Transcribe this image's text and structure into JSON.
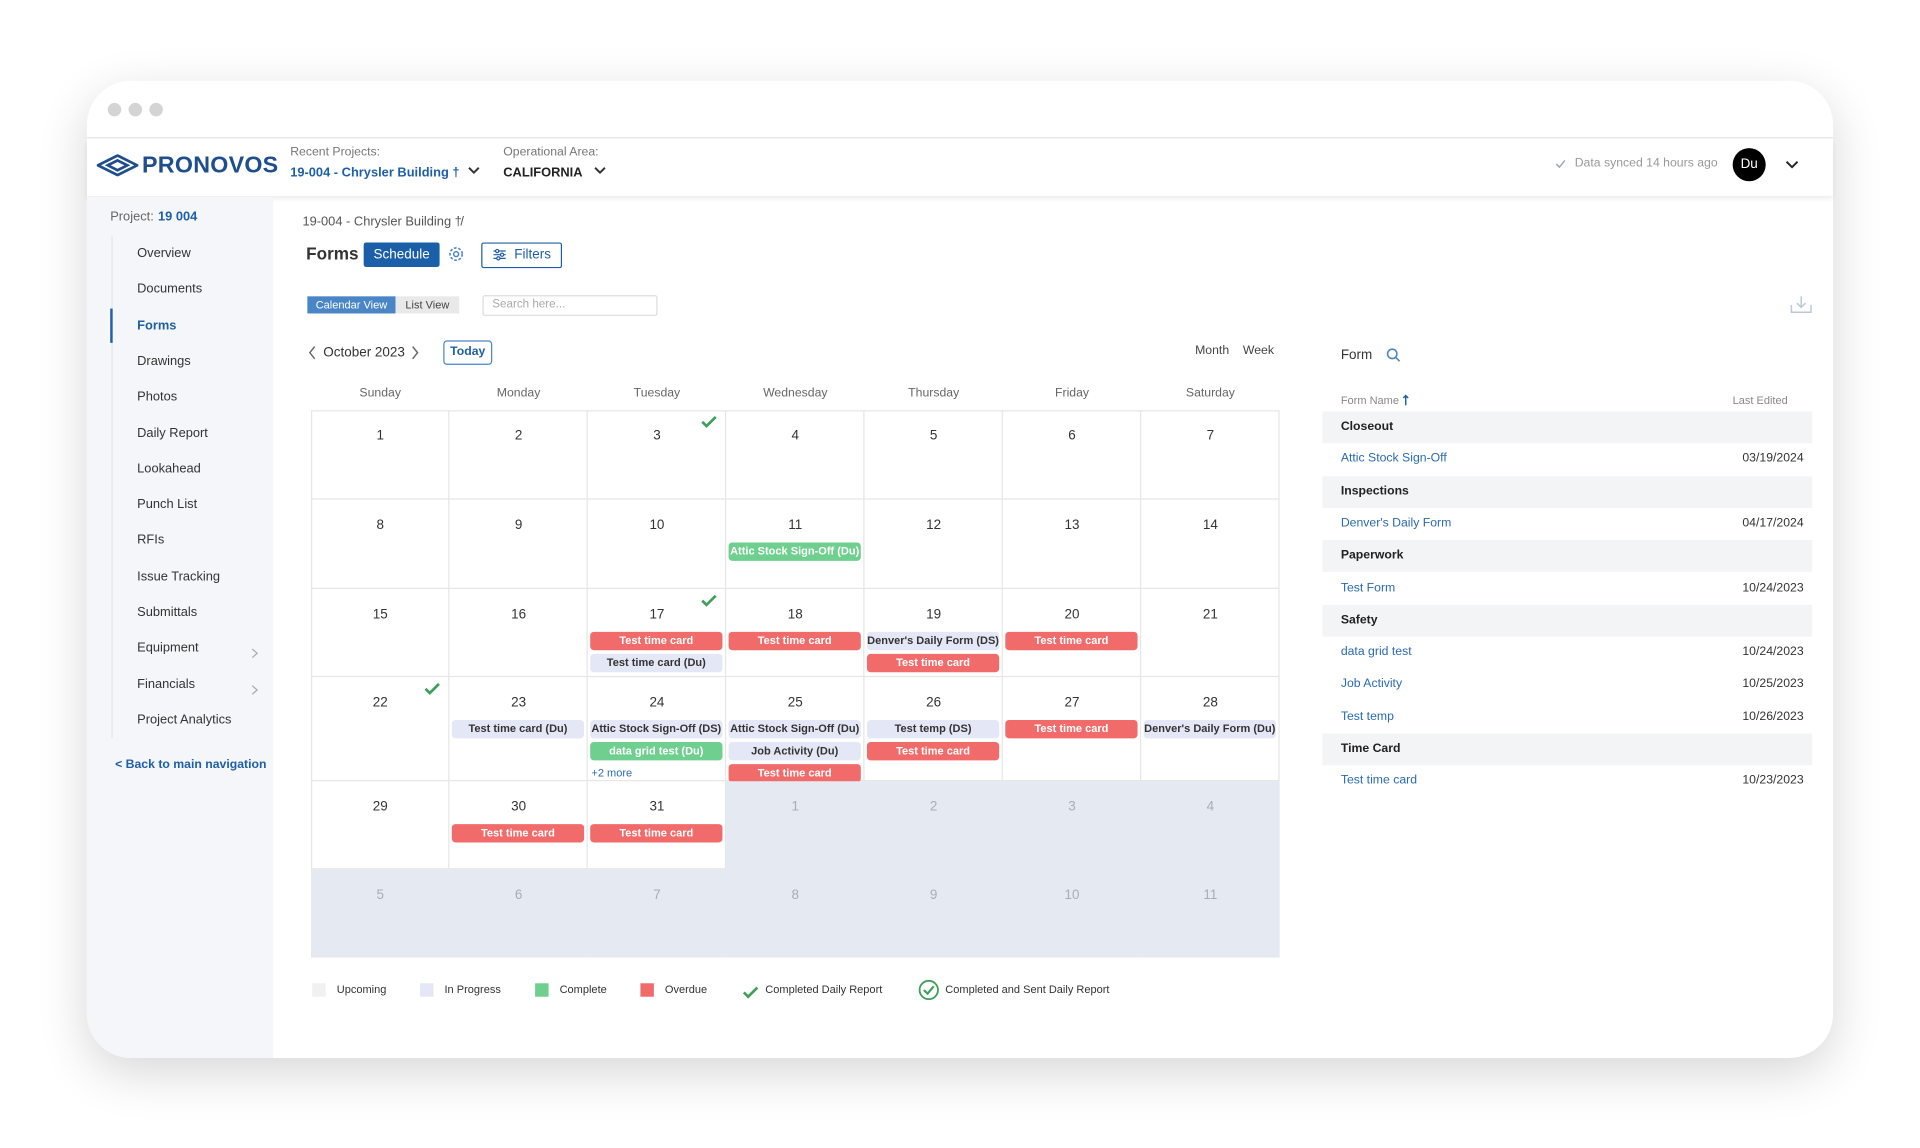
{
  "header": {
    "logo": "PRONOVOS",
    "recent_projects_label": "Recent Projects:",
    "recent_project": "19-004 - Chrysler Building †",
    "operational_area_label": "Operational Area:",
    "operational_area": "CALIFORNIA",
    "sync_status": "Data synced 14 hours ago",
    "avatar": "Du"
  },
  "sidebar": {
    "project_label": "Project:",
    "project_number": "19 004",
    "items": [
      {
        "label": "Overview"
      },
      {
        "label": "Documents"
      },
      {
        "label": "Forms",
        "active": true
      },
      {
        "label": "Drawings"
      },
      {
        "label": "Photos"
      },
      {
        "label": "Daily Report"
      },
      {
        "label": "Lookahead"
      },
      {
        "label": "Punch List"
      },
      {
        "label": "RFIs"
      },
      {
        "label": "Issue Tracking"
      },
      {
        "label": "Submittals"
      },
      {
        "label": "Equipment",
        "chevron": true
      },
      {
        "label": "Financials",
        "chevron": true
      },
      {
        "label": "Project Analytics"
      }
    ],
    "back_link": "< Back to main navigation"
  },
  "breadcrumb": {
    "project": "19-004 - Chrysler Building †",
    "separator": "/"
  },
  "toolbar": {
    "title": "Forms",
    "schedule": "Schedule",
    "filters": "Filters",
    "views": [
      "Calendar View",
      "List View"
    ],
    "search_placeholder": "Search here..."
  },
  "calendar": {
    "month": "October 2023",
    "today": "Today",
    "modes": [
      "Month",
      "Week"
    ],
    "weekdays": [
      "Sunday",
      "Monday",
      "Tuesday",
      "Wednesday",
      "Thursday",
      "Friday",
      "Saturday"
    ],
    "weeks": [
      [
        {
          "day": 1
        },
        {
          "day": 2
        },
        {
          "day": 3,
          "check": true
        },
        {
          "day": 4
        },
        {
          "day": 5
        },
        {
          "day": 6
        },
        {
          "day": 7
        }
      ],
      [
        {
          "day": 8
        },
        {
          "day": 9
        },
        {
          "day": 10
        },
        {
          "day": 11,
          "events": [
            {
              "label": "Attic Stock Sign-Off (Du)",
              "status": "complete"
            }
          ]
        },
        {
          "day": 12
        },
        {
          "day": 13
        },
        {
          "day": 14
        }
      ],
      [
        {
          "day": 15
        },
        {
          "day": 16
        },
        {
          "day": 17,
          "check": true,
          "events": [
            {
              "label": "Test time card",
              "status": "overdue"
            },
            {
              "label": "Test time card (Du)",
              "status": "in_progress"
            }
          ]
        },
        {
          "day": 18,
          "events": [
            {
              "label": "Test time card",
              "status": "overdue"
            }
          ]
        },
        {
          "day": 19,
          "events": [
            {
              "label": "Denver's Daily Form (DS)",
              "status": "in_progress"
            },
            {
              "label": "Test time card",
              "status": "overdue"
            }
          ]
        },
        {
          "day": 20,
          "events": [
            {
              "label": "Test time card",
              "status": "overdue"
            }
          ]
        },
        {
          "day": 21
        }
      ],
      [
        {
          "day": 22,
          "check": true
        },
        {
          "day": 23,
          "events": [
            {
              "label": "Test time card (Du)",
              "status": "in_progress"
            }
          ]
        },
        {
          "day": 24,
          "events": [
            {
              "label": "Attic Stock Sign-Off (DS)",
              "status": "in_progress"
            },
            {
              "label": "data grid test (Du)",
              "status": "complete"
            }
          ],
          "more": "+2 more"
        },
        {
          "day": 25,
          "events": [
            {
              "label": "Attic Stock Sign-Off (Du)",
              "status": "in_progress"
            },
            {
              "label": "Job Activity (Du)",
              "status": "in_progress"
            },
            {
              "label": "Test time card",
              "status": "overdue"
            }
          ]
        },
        {
          "day": 26,
          "events": [
            {
              "label": "Test temp (DS)",
              "status": "in_progress"
            },
            {
              "label": "Test time card",
              "status": "overdue"
            }
          ]
        },
        {
          "day": 27,
          "events": [
            {
              "label": "Test time card",
              "status": "overdue"
            }
          ]
        },
        {
          "day": 28,
          "events": [
            {
              "label": "Denver's Daily Form (Du)",
              "status": "in_progress"
            }
          ]
        }
      ],
      [
        {
          "day": 29
        },
        {
          "day": 30,
          "events": [
            {
              "label": "Test time card",
              "status": "overdue"
            }
          ]
        },
        {
          "day": 31,
          "events": [
            {
              "label": "Test time card",
              "status": "overdue"
            }
          ]
        },
        {
          "day": 1,
          "outside": true
        },
        {
          "day": 2,
          "outside": true
        },
        {
          "day": 3,
          "outside": true
        },
        {
          "day": 4,
          "outside": true
        }
      ],
      [
        {
          "day": 5,
          "outside": true
        },
        {
          "day": 6,
          "outside": true
        },
        {
          "day": 7,
          "outside": true
        },
        {
          "day": 8,
          "outside": true
        },
        {
          "day": 9,
          "outside": true
        },
        {
          "day": 10,
          "outside": true
        },
        {
          "day": 11,
          "outside": true
        }
      ]
    ]
  },
  "legend": [
    {
      "label": "Upcoming",
      "kind": "upcoming"
    },
    {
      "label": "In Progress",
      "kind": "in_progress"
    },
    {
      "label": "Complete",
      "kind": "complete"
    },
    {
      "label": "Overdue",
      "kind": "overdue"
    },
    {
      "label": "Completed Daily Report",
      "kind": "check"
    },
    {
      "label": "Completed and Sent Daily Report",
      "kind": "circle_check"
    }
  ],
  "form_panel": {
    "title": "Form",
    "name_header": "Form Name",
    "date_header": "Last Edited",
    "groups": [
      {
        "name": "Closeout",
        "forms": [
          {
            "name": "Attic Stock Sign-Off",
            "date": "03/19/2024"
          }
        ]
      },
      {
        "name": "Inspections",
        "forms": [
          {
            "name": "Denver's Daily Form",
            "date": "04/17/2024"
          }
        ]
      },
      {
        "name": "Paperwork",
        "forms": [
          {
            "name": "Test Form",
            "date": "10/24/2023"
          }
        ]
      },
      {
        "name": "Safety",
        "forms": [
          {
            "name": "data grid test",
            "date": "10/24/2023"
          },
          {
            "name": "Job Activity",
            "date": "10/25/2023"
          },
          {
            "name": "Test temp",
            "date": "10/26/2023"
          }
        ]
      },
      {
        "name": "Time Card",
        "forms": [
          {
            "name": "Test time card",
            "date": "10/23/2023"
          }
        ]
      }
    ]
  }
}
